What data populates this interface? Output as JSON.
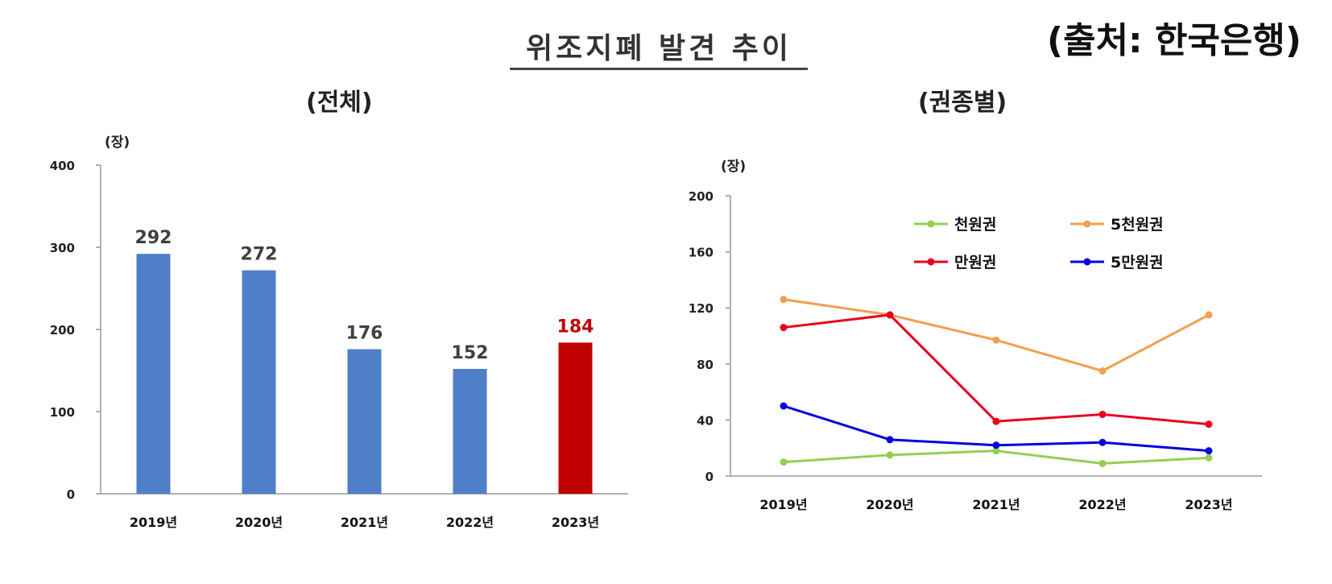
{
  "header": {
    "title": "위조지폐 발견 추이",
    "source": "(출처: 한국은행)"
  },
  "colors": {
    "bar_default": "#4f7fc8",
    "bar_highlight": "#c00000",
    "label_default": "#404040",
    "label_highlight": "#c00000",
    "axis": "#999999"
  },
  "chart_data": [
    {
      "type": "bar",
      "title": "(전체)",
      "unit": "(장)",
      "categories": [
        "2019년",
        "2020년",
        "2021년",
        "2022년",
        "2023년"
      ],
      "values": [
        292,
        272,
        176,
        152,
        184
      ],
      "highlight_index": 4,
      "ylim": [
        0,
        400
      ],
      "yticks": [
        0,
        100,
        200,
        300,
        400
      ],
      "grid": false
    },
    {
      "type": "line",
      "title": "(권종별)",
      "unit": "(장)",
      "categories": [
        "2019년",
        "2020년",
        "2021년",
        "2022년",
        "2023년"
      ],
      "ylim": [
        0,
        200
      ],
      "yticks": [
        0,
        40,
        80,
        120,
        160,
        200
      ],
      "grid": false,
      "legend_position": "top-right",
      "series": [
        {
          "name": "천원권",
          "color": "#92d050",
          "values": [
            10,
            15,
            18,
            9,
            13
          ]
        },
        {
          "name": "5천원권",
          "color": "#f0a050",
          "values": [
            126,
            115,
            97,
            75,
            115
          ]
        },
        {
          "name": "만원권",
          "color": "#e8001c",
          "values": [
            106,
            115,
            39,
            44,
            37
          ]
        },
        {
          "name": "5만원권",
          "color": "#0000e0",
          "values": [
            50,
            26,
            22,
            24,
            18
          ]
        }
      ]
    }
  ]
}
